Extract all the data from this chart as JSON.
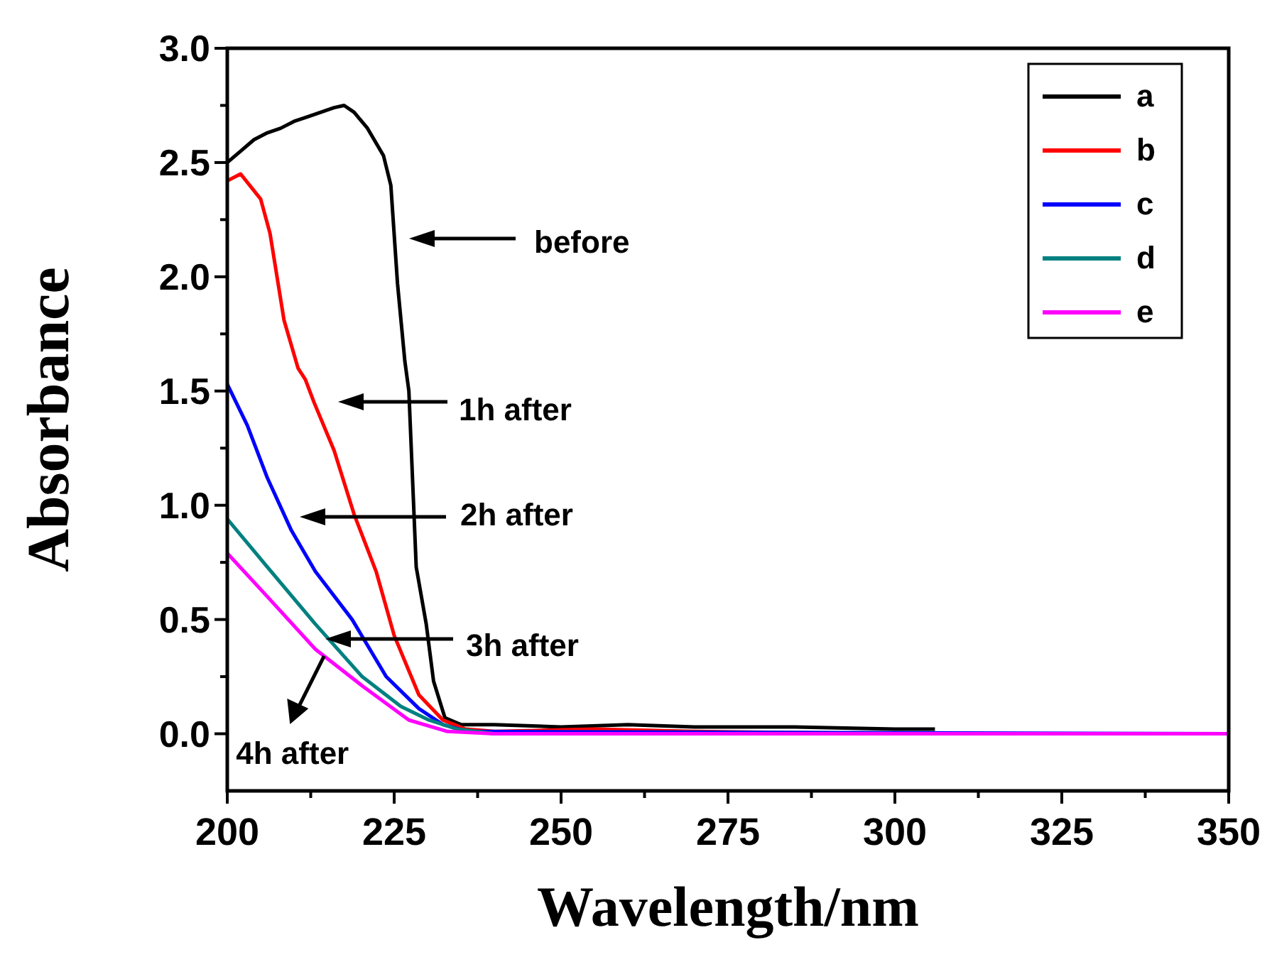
{
  "chart_data": {
    "type": "line",
    "xlabel": "Wavelength/nm",
    "ylabel": "Absorbance",
    "xlim": [
      200,
      350
    ],
    "ylim": [
      -0.25,
      3.0
    ],
    "xticks": [
      200,
      {
        "value": 212.5,
        "label": null
      },
      225,
      {
        "value": 237.5,
        "label": null
      },
      250,
      {
        "value": 262.5,
        "label": null
      },
      275,
      {
        "value": 287.5,
        "label": null
      },
      300,
      {
        "value": 312.5,
        "label": null
      },
      325,
      {
        "value": 337.5,
        "label": null
      },
      350
    ],
    "yticks": [
      "0.0",
      {
        "value": 0.25,
        "label": null
      },
      {
        "value": 0.5,
        "label": "0.5"
      },
      {
        "value": 0.75,
        "label": null
      },
      {
        "value": 1.0,
        "label": "1.0"
      },
      {
        "value": 1.25,
        "label": null
      },
      {
        "value": 1.5,
        "label": "1.5"
      },
      {
        "value": 1.75,
        "label": null
      },
      {
        "value": 2.0,
        "label": "2.0"
      },
      {
        "value": 2.25,
        "label": null
      },
      {
        "value": 2.5,
        "label": "2.5"
      },
      {
        "value": 2.75,
        "label": null
      },
      {
        "value": 3.0,
        "label": "3.0"
      }
    ],
    "grid": false,
    "legend": "top right",
    "marker": "none",
    "line_style": "solid",
    "series": [
      {
        "name": "a",
        "color": "#000000",
        "x": [
          200,
          202,
          204,
          206,
          208,
          210,
          212,
          214,
          216,
          217.5,
          219,
          221,
          223.4,
          224.5,
          225.5,
          226.6,
          227.2,
          228.3,
          229.8,
          230.9,
          232.6,
          235,
          240,
          250,
          260,
          270,
          285,
          300,
          306
        ],
        "values": [
          2.5,
          2.55,
          2.6,
          2.63,
          2.65,
          2.68,
          2.7,
          2.72,
          2.74,
          2.75,
          2.72,
          2.65,
          2.53,
          2.4,
          1.97,
          1.63,
          1.5,
          0.73,
          0.48,
          0.23,
          0.07,
          0.04,
          0.04,
          0.03,
          0.04,
          0.03,
          0.03,
          0.02,
          0.02
        ]
      },
      {
        "name": "b",
        "color": "#ff0000",
        "x": [
          200,
          202,
          205,
          206.4,
          208.5,
          210.6,
          211.7,
          213,
          216,
          219,
          222.3,
          225,
          228.7,
          232.3,
          235.7,
          240,
          255,
          270,
          300,
          350
        ],
        "values": [
          2.42,
          2.45,
          2.34,
          2.19,
          1.81,
          1.6,
          1.55,
          1.45,
          1.24,
          0.96,
          0.71,
          0.43,
          0.17,
          0.06,
          0.02,
          0.01,
          0.02,
          0.01,
          0.0,
          0.0
        ]
      },
      {
        "name": "c",
        "color": "#0000ff",
        "x": [
          200,
          203,
          206,
          209.6,
          213.2,
          218.7,
          223.8,
          228.7,
          232.3,
          236,
          350
        ],
        "values": [
          1.53,
          1.35,
          1.12,
          0.89,
          0.71,
          0.5,
          0.25,
          0.11,
          0.04,
          0.01,
          0.0
        ]
      },
      {
        "name": "d",
        "color": "#008080",
        "x": [
          200,
          206,
          213.2,
          220.2,
          226,
          230.2,
          234.5,
          240
        ],
        "values": [
          0.94,
          0.73,
          0.48,
          0.25,
          0.12,
          0.06,
          0.02,
          0.0
        ]
      },
      {
        "name": "e",
        "color": "#ff00ff",
        "x": [
          200,
          206,
          213.2,
          220.2,
          227.2,
          233,
          240,
          350
        ],
        "values": [
          0.79,
          0.6,
          0.37,
          0.21,
          0.06,
          0.01,
          0.0,
          0.0
        ]
      }
    ],
    "annotations": [
      "before",
      "1h after",
      "2h after",
      "3h after",
      {
        "text": "4h after",
        "x": 214.5,
        "y": 0.34
      }
    ]
  }
}
